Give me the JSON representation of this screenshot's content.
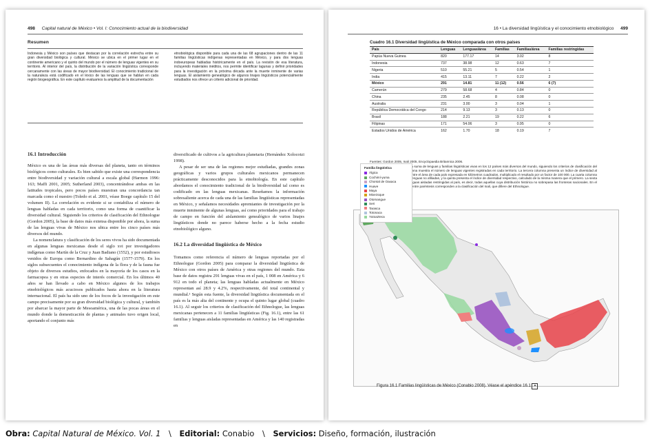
{
  "left_page": {
    "page_number": "498",
    "running_head": "Capital natural de México • Vol. I: Conocimiento actual de la biodiversidad",
    "resumen_title": "Resumen",
    "resumen_col1": "Indonesia y México son países que destacan por la correlación estrecha entre su gran diversidad biológica y cultural. México se ubica en el primer lugar en el continente americano y el quinto del mundo por el número de lenguas vigentes en su territorio. Al interior del país, la distribución de la variación lingüística corresponde cercanamente con las áreas de mayor biodiversidad. El conocimiento tradicional de la naturaleza está codificado en el léxico de las lenguas que se hablan en cada región biogeográfica. En este capítulo evaluamos la amplitud de la documentación",
    "resumen_col2": "etnobiológica disponible para cada una de las 68 agrupaciones dentro de las 11 familias lingüísticas indígenas representadas en México, y para dos lenguas indoeuropeas habladas históricamente en el país. La revisión de esa literatura, incluyendo materiales inéditos, nos permite identificar lagunas y definir prioridades para la investigación en la próxima década ante la muerte inminente de varias lenguas. El aislamiento genealógico de algunos linajes lingüísticos potencialmente estudiados nos ofrece un criterio adicional de prioridad.",
    "section1_heading": "16.1 Introducción",
    "section1_p1": "México es una de las áreas más diversas del planeta, tanto en términos biológicos como culturales. Es bien sabido que existe una correspondencia entre biodiversidad y variación cultural a escala global (Harmon 1996: 163; Maffi 2001, 2005; Sutherland 2003), concentrándose ambas en las latitudes tropicales, pero pocos países muestran una concordancia tan marcada como el nuestro (Toledo et al. 2001, véase Boege capítulo 15 del volumen II). La correlación es evidente si se contabiliza el número de lenguas habladas en cada territorio, como una forma de cuantificar la diversidad cultural. Siguiendo los criterios de clasificación del Ethnologue (Gordon 2005), la base de datos más extensa disponible por ahora, la suma de las lenguas vivas de México nos ubica entre los cinco países más diversos del mundo.",
    "section1_p2": "La nomenclatura y clasificación de los seres vivos ha sido documentada en algunas lenguas mexicanas desde el siglo xvi por investigadores indígenas como Martín de la Cruz y Juan Badiano (1552), y por estudiosos venidos de Europa como Bernardino de Sahagún (1577-1579). En los siglos subsecuentes el conocimiento indígena de la flora y de la fauna fue objeto de diversos estudios, enfocados en la mayoría de los casos en la farmacopea y en otras especies de interés comercial. En los últimos 40 años se han llevado a cabo en México algunos de los trabajos etnobiológicos más acuciosos publicados hasta ahora en la literatura internacional. El país ha sido uno de los focos de la investigación en este campo precisamente por su gran diversidad biológica y cultural, y también por abarcar la mayor parte de Mesoamérica, una de las pocas áreas en el mundo donde la domesticación de plantas y animales tuvo origen local, aportando el conjunto más",
    "col2_p1": "diversificado de cultivos a la agricultura planetaria (Hernández Xolocotzi 1998).",
    "col2_p2": "A pesar de ser una de las regiones mejor estudiadas, grandes zonas geográficas y varios grupos culturales mexicanos permanecen prácticamente desconocidos para la etnobiología. En este capítulo abordamos el conocimiento tradicional de la biodiversidad tal como es codificado en las lenguas mexicanas. Reseñamos la información sobresaliente acerca de cada una de las familias lingüísticas representadas en México, y señalamos necesidades apremiantes de investigación por la muerte inminente de algunas lenguas, así como prioridades para el trabajo de campo en función del aislamiento genealógico de varios linajes lingüísticos donde no parece haberse hecho a la fecha estudio etnobiológico alguno.",
    "section2_heading": "16.2 La diversidad lingüística de México",
    "section2_p1": "Tomamos como referencia el número de lenguas reportadas por el Ethnologue (Gordon 2005) para comparar la diversidad lingüística de México con otros países de América y otras regiones del mundo. Esta base de datos registra 291 lenguas vivas en el país, 1 008 en América y 6 912 en todo el planeta; las lenguas habladas actualmente en México representan así 28.9 y 4.2%, respectivamente, del total continental y mundial.¹ Según esta fuente, la diversidad lingüística documentada en el país es la más alta del continente y ocupa el quinto lugar global (cuadro 16.1). Al seguir los criterios de clasificación del Ethnologue, las lenguas mexicanas pertenecen a 11 familias lingüísticas (Fig. 16.1), entre las 61 familias y lenguas aisladas representadas en América y las 140 registradas en"
  },
  "right_page": {
    "page_number": "499",
    "running_head": "16 • La diversidad lingüística y el conocimiento etnobiológico",
    "table_title": "Cuadro 16.1  Diversidad lingüística de México comparada con otros países",
    "table_headers": [
      "País",
      "Lenguas",
      "Lenguas/área",
      "Familias",
      "Familias/área",
      "Familias restringidas"
    ],
    "table_rows": [
      [
        "Papúa Nueva Guinea",
        "820",
        "177.17",
        "14",
        "3.02",
        "8"
      ],
      [
        "Indonesia",
        "737",
        "38.98",
        "12",
        "0.63",
        "7"
      ],
      [
        "Nigeria",
        "510",
        "55.21",
        "5",
        "0.54",
        "1"
      ],
      [
        "India",
        "415",
        "13.11",
        "7",
        "0.22",
        "2"
      ],
      [
        "México",
        "291",
        "14.81",
        "11 (12)",
        "0.56",
        "6 (7)"
      ],
      [
        "Camerún",
        "279",
        "58.68",
        "4",
        "0.84",
        "0"
      ],
      [
        "China",
        "235",
        "2.45",
        "8",
        "0.08",
        "0"
      ],
      [
        "Australia",
        "231",
        "3.00",
        "3",
        "0.04",
        "1"
      ],
      [
        "República Democrática del Congo",
        "214",
        "9.13",
        "3",
        "0.13",
        "0"
      ],
      [
        "Brasil",
        "188",
        "2.21",
        "19",
        "0.22",
        "6"
      ],
      [
        "Filipinas",
        "171",
        "54.06",
        "3",
        "0.95",
        "0"
      ],
      [
        "Estados Unidos de América",
        "162",
        "1.70",
        "18",
        "0.19",
        "7"
      ]
    ],
    "table_source": "Fuentes: Gordon 2005, Inali 2005, Encyclopaedia Britannica 2006.",
    "table_notes": "Notas: este cuadro presenta la suma de lenguas y familias lingüísticas vivas en los 12 países más diversos del mundo, siguiendo los criterios de clasificación del Ethnologue. La segunda columna muestra el número de lenguas vigentes registradas en cada territorio. La tercera columna presenta un índice de diversidad al dividir el número de lenguas entre el área de cada país expresada en kilómetros cuadrados, multiplicado el resultado por un factor de 100 000. La cuarta columna muestra el total de familias y lenguas no afiliadas, y la quinta presenta el índice de diversidad respectivo, calculado de la misma manera que el primero. La sexta indica la cifra de familias y lenguas aisladas restringidas al país, es decir, todas aquellas cuya distribución histórica no sobrepasa las fronteras nacionales. En el caso de México, los números entre paréntesis corresponden a la clasificación del Inali, que difiere del Ethnologue.",
    "legend_title": "Familia lingüística",
    "legend_items": [
      {
        "label": "Álgica",
        "color": "#8a2be2"
      },
      {
        "label": "Cochimí-yuma",
        "color": "#5fa85f"
      },
      {
        "label": "Chontal de Oaxaca",
        "color": "#c8a2c8"
      },
      {
        "label": "Huave",
        "color": "#1e90ff"
      },
      {
        "label": "Maya",
        "color": "#e8434a"
      },
      {
        "label": "Mixezoque",
        "color": "#d4a017"
      },
      {
        "label": "Otomangue",
        "color": "#9a55c2"
      },
      {
        "label": "Seri",
        "color": "#2e8b57"
      },
      {
        "label": "Tarasca",
        "color": "#f08080"
      },
      {
        "label": "Totonaca",
        "color": "#b0c4de"
      },
      {
        "label": "Yutoazteca",
        "color": "#98d8a0"
      }
    ],
    "figure_caption": "Figura 16.1  Familias lingüísticas de México (Conabio 2008). Véase el apéndice 16.1"
  },
  "footer": {
    "obra_label": "Obra:",
    "obra_value": "Capital Natural de México. Vol. 1",
    "sep1": "\\",
    "editorial_label": "Editorial:",
    "editorial_value": "Conabio",
    "sep2": "\\",
    "servicios_label": "Servicios:",
    "servicios_value": "Diseño, formación, ilustración"
  }
}
